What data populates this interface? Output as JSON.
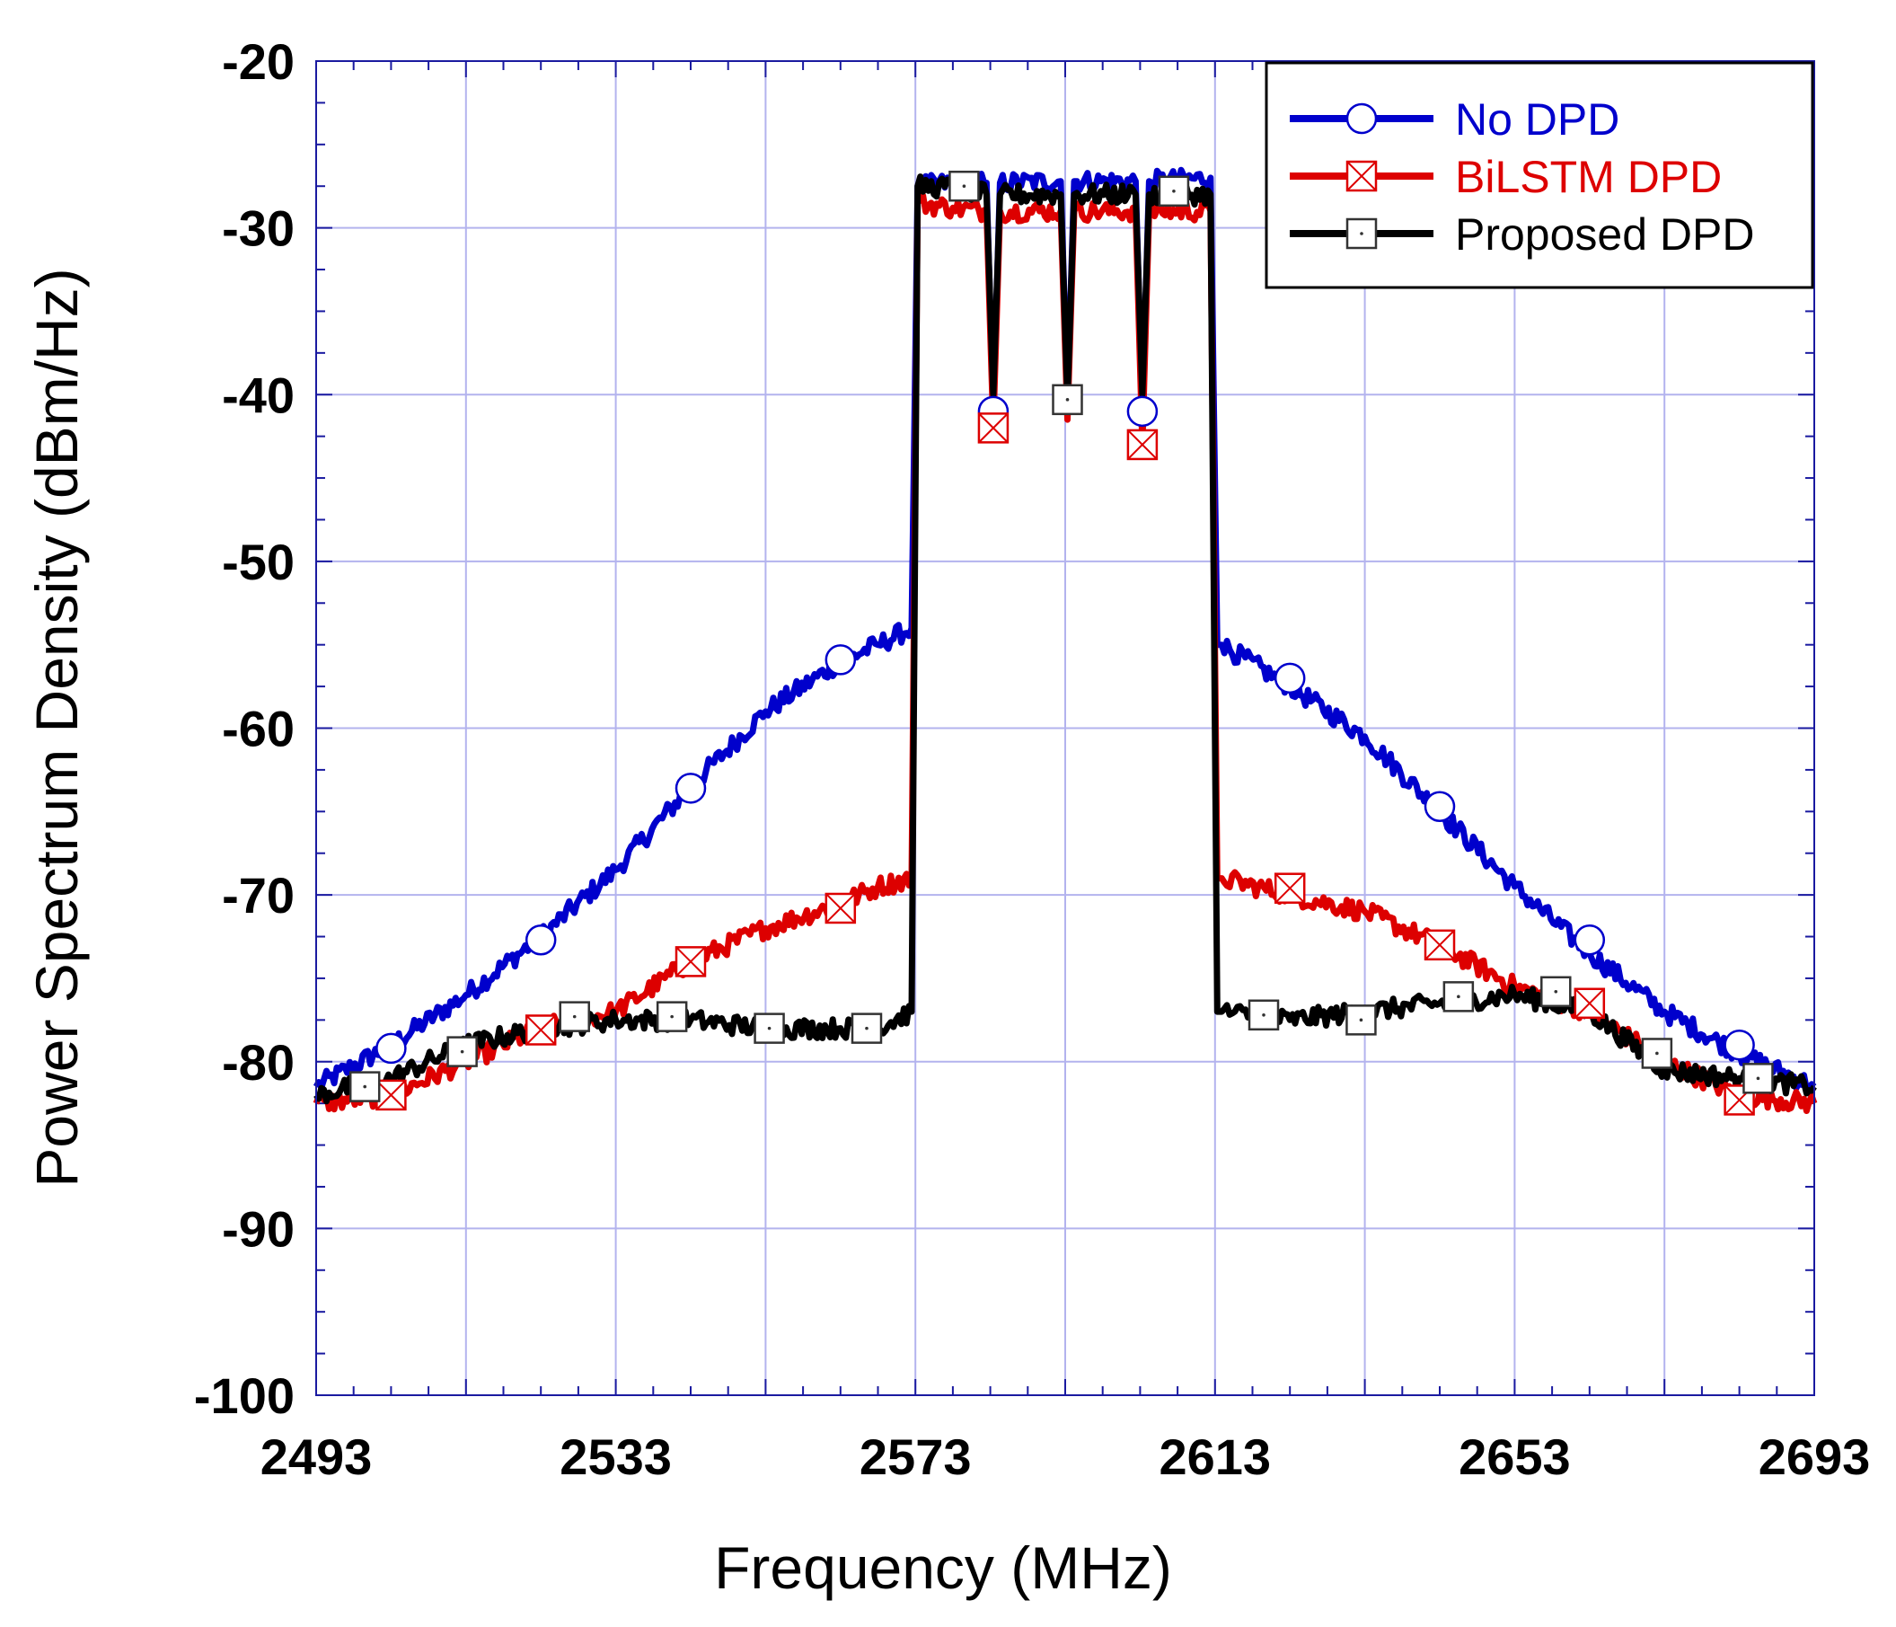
{
  "chart_data": {
    "type": "line",
    "title": "",
    "xlabel": "Frequency (MHz)",
    "ylabel": "Power Spectrum Density (dBm/Hz)",
    "xlim": [
      2493,
      2693
    ],
    "ylim": [
      -100,
      -20
    ],
    "grid": true,
    "x_ticks": [
      2493,
      2533,
      2573,
      2613,
      2653,
      2693
    ],
    "y_ticks": [
      -20,
      -30,
      -40,
      -50,
      -60,
      -70,
      -80,
      -90,
      -100
    ],
    "x_tick_labels": [
      "2493",
      "2533",
      "2573",
      "2613",
      "2653",
      "2693"
    ],
    "y_tick_labels": [
      "-20",
      "-30",
      "-40",
      "-50",
      "-60",
      "-70",
      "-80",
      "-90",
      "-100"
    ],
    "legend_position": "top-right",
    "series": [
      {
        "name": "No DPD",
        "color": "#0000cc",
        "marker": "circle",
        "x": [
          2493,
          2503,
          2513,
          2523,
          2533,
          2543,
          2553,
          2563,
          2568,
          2572.5,
          2573.3,
          2578,
          2582.5,
          2583.4,
          2584.3,
          2592.4,
          2593.3,
          2594.2,
          2602.4,
          2603.3,
          2604.2,
          2612.4,
          2613.3,
          2613.9,
          2623,
          2633,
          2643,
          2653,
          2663,
          2673,
          2683,
          2693
        ],
        "values": [
          -81.5,
          -79,
          -76,
          -72.5,
          -68.5,
          -63.5,
          -59,
          -56,
          -55,
          -54,
          -27.5,
          -27.3,
          -27.3,
          -41,
          -27.3,
          -27.2,
          -40.3,
          -27.2,
          -27.2,
          -41,
          -27.2,
          -27.0,
          -55,
          -55,
          -57.5,
          -60.5,
          -65,
          -69.5,
          -73.5,
          -77,
          -79.5,
          -81.5
        ],
        "markers_x": [
          2503,
          2523,
          2543,
          2563,
          2583.4,
          2603.3,
          2623,
          2643,
          2663,
          2683
        ],
        "markers_y": [
          -79.2,
          -72.7,
          -63.6,
          -55.9,
          -41,
          -41,
          -57,
          -64.7,
          -72.7,
          -79
        ]
      },
      {
        "name": "BiLSTM DPD",
        "color": "#dd0000",
        "marker": "square-x",
        "x": [
          2493,
          2503,
          2513,
          2523,
          2533,
          2543,
          2553,
          2563,
          2568,
          2572.5,
          2573.3,
          2578,
          2582.5,
          2583.4,
          2584.3,
          2592.4,
          2593.3,
          2594.2,
          2602.4,
          2603.3,
          2604.2,
          2612.4,
          2613.3,
          2613.9,
          2623,
          2633,
          2643,
          2653,
          2663,
          2673,
          2683,
          2693
        ],
        "values": [
          -82.5,
          -82,
          -80,
          -78,
          -77,
          -74,
          -72,
          -70.5,
          -69.5,
          -69,
          -28.5,
          -28.8,
          -29,
          -42,
          -29,
          -29,
          -41.5,
          -29,
          -29,
          -43,
          -29,
          -29,
          -69,
          -69,
          -70,
          -71,
          -73,
          -75.5,
          -77,
          -80,
          -82,
          -82.5
        ],
        "markers_x": [
          2503,
          2523,
          2543,
          2563,
          2583.4,
          2603.3,
          2623,
          2643,
          2663,
          2683
        ],
        "markers_y": [
          -82,
          -78.1,
          -74,
          -70.8,
          -42,
          -43,
          -69.6,
          -73,
          -76.5,
          -82.3
        ]
      },
      {
        "name": "Proposed DPD",
        "color": "#000000",
        "marker": "square-dot",
        "x": [
          2493,
          2503,
          2513,
          2523,
          2533,
          2543,
          2553,
          2563,
          2568,
          2572.5,
          2573.3,
          2578,
          2582.5,
          2583.4,
          2584.3,
          2592.4,
          2593.3,
          2594.2,
          2602.4,
          2603.3,
          2604.2,
          2612.4,
          2613.3,
          2613.9,
          2623,
          2633,
          2643,
          2653,
          2663,
          2673,
          2683,
          2693
        ],
        "values": [
          -82,
          -81,
          -79,
          -78,
          -77.5,
          -77.5,
          -78,
          -78,
          -78,
          -77,
          -27.5,
          -27.6,
          -28,
          -40,
          -28,
          -28,
          -40.3,
          -28,
          -28,
          -40,
          -28,
          -28,
          -77,
          -77,
          -77.5,
          -77,
          -76.5,
          -76,
          -77,
          -80.5,
          -81,
          -81.5
        ],
        "markers_x": [
          2499.5,
          2512.5,
          2527.5,
          2540.5,
          2553.5,
          2566.5,
          2579.5,
          2593.3,
          2607.5,
          2619.5,
          2632.5,
          2645.5,
          2658.5,
          2672,
          2685.5
        ],
        "markers_y": [
          -81.5,
          -79.4,
          -77.3,
          -77.3,
          -78,
          -78,
          -27.5,
          -40.3,
          -27.8,
          -77.2,
          -77.5,
          -76.1,
          -75.8,
          -79.5,
          -81
        ]
      }
    ]
  }
}
